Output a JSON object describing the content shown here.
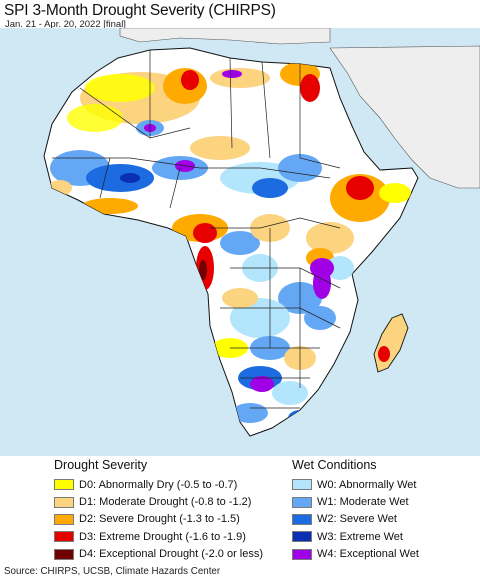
{
  "header": {
    "title": "SPI 3-Month Drought Severity (CHIRPS)",
    "subtitle": "Jan. 21 - Apr. 20, 2022 [final]"
  },
  "map": {
    "region": "Africa",
    "colors": {
      "ocean": "#cfe8f4",
      "land_neutral": "#ffffff",
      "outside_region": "#eeeeee",
      "borders": "#222222"
    }
  },
  "legend": {
    "drought_title": "Drought Severity",
    "wet_title": "Wet Conditions",
    "drought_items": [
      {
        "label": "D0: Abnormally Dry (-0.5 to -0.7)",
        "color": "#ffff00"
      },
      {
        "label": "D1: Moderate Drought (-0.8 to -1.2)",
        "color": "#fcd37f"
      },
      {
        "label": "D2: Severe Drought (-1.3 to -1.5)",
        "color": "#ffaa00"
      },
      {
        "label": "D3: Extreme Drought (-1.6 to -1.9)",
        "color": "#e60000"
      },
      {
        "label": "D4: Exceptional Drought (-2.0 or less)",
        "color": "#730000"
      }
    ],
    "wet_items": [
      {
        "label": "W0: Abnormally Wet",
        "color": "#b3e5fc"
      },
      {
        "label": "W1: Moderate Wet",
        "color": "#64a8f5"
      },
      {
        "label": "W2: Severe Wet",
        "color": "#1c6be0"
      },
      {
        "label": "W3: Extreme Wet",
        "color": "#0a2fb0"
      },
      {
        "label": "W4: Exceptional Wet",
        "color": "#a000e6"
      }
    ]
  },
  "footer": {
    "source": "Source: CHIRPS, UCSB, Climate Hazards Center"
  }
}
